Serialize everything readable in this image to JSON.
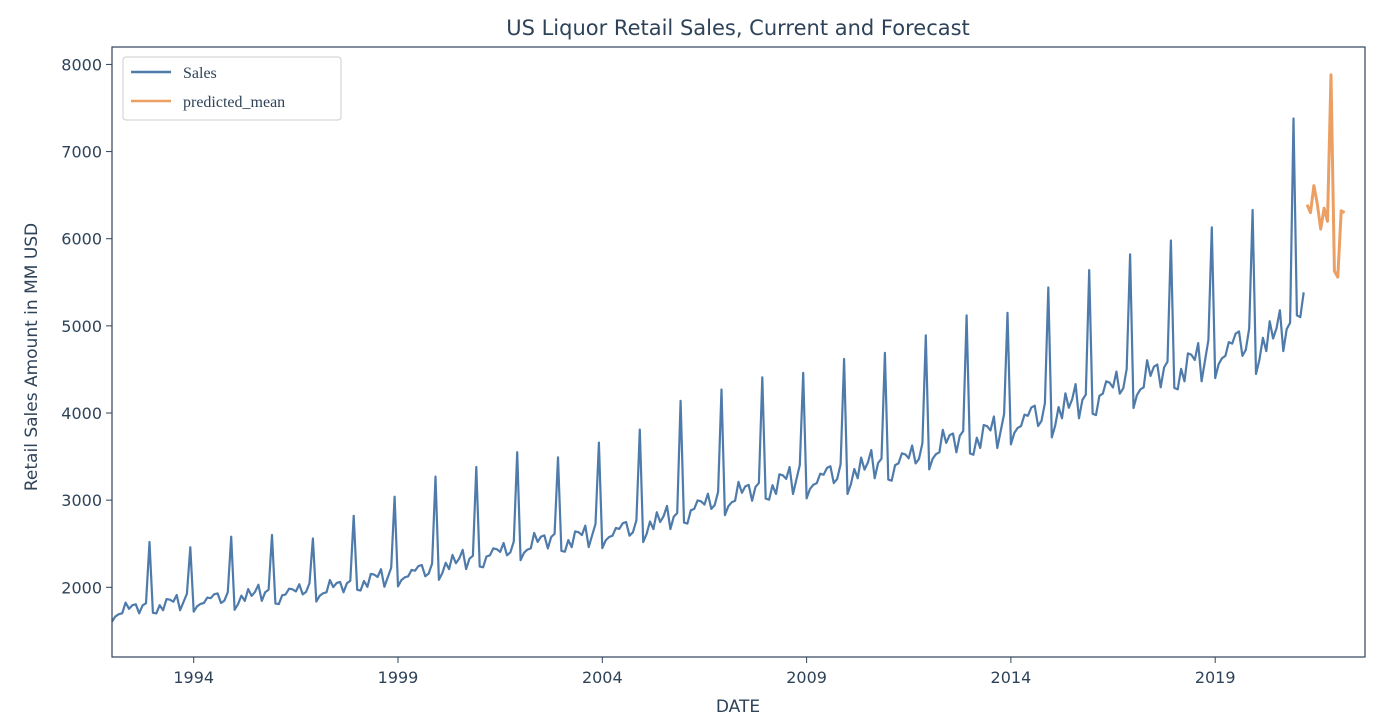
{
  "chart_data": {
    "type": "line",
    "title": "US Liquor Retail Sales, Current and Forecast",
    "xlabel": "DATE",
    "ylabel": "Retail Sales Amount in MM USD",
    "xlim": [
      "1992-01",
      "2022-09"
    ],
    "ylim": [
      1200,
      8200
    ],
    "x_ticks": [
      "1994",
      "1999",
      "2004",
      "2009",
      "2014",
      "2019"
    ],
    "y_ticks": [
      "2000",
      "3000",
      "4000",
      "5000",
      "6000",
      "7000",
      "8000"
    ],
    "grid": false,
    "legend_position": "top-left",
    "series": [
      {
        "name": "Sales",
        "color": "#4f7bab",
        "start": "1992-01",
        "base_by_year": [
          1620,
          1680,
          1720,
          1770,
          1800,
          1850,
          1940,
          2010,
          2120,
          2220,
          2330,
          2380,
          2450,
          2560,
          2720,
          2850,
          2970,
          3020,
          3120,
          3210,
          3380,
          3480,
          3640,
          3780,
          3960,
          4090,
          4220,
          4400,
          4520,
          5080,
          5650
        ],
        "december_by_year": [
          2520,
          2460,
          2580,
          2600,
          2560,
          2820,
          3040,
          3270,
          3380,
          3550,
          3490,
          3660,
          3810,
          4140,
          4270,
          4410,
          4460,
          4620,
          4690,
          4890,
          5120,
          5150,
          5440,
          5640,
          5820,
          5980,
          6130,
          6330,
          7380
        ],
        "last_month": "2021-03"
      },
      {
        "name": "predicted_mean",
        "color": "#eb9f63",
        "start": "2021-04",
        "values": [
          6390,
          6300,
          6610,
          6400,
          6110,
          6350,
          6200,
          7880,
          5630,
          5560,
          6320,
          6300
        ]
      }
    ]
  }
}
